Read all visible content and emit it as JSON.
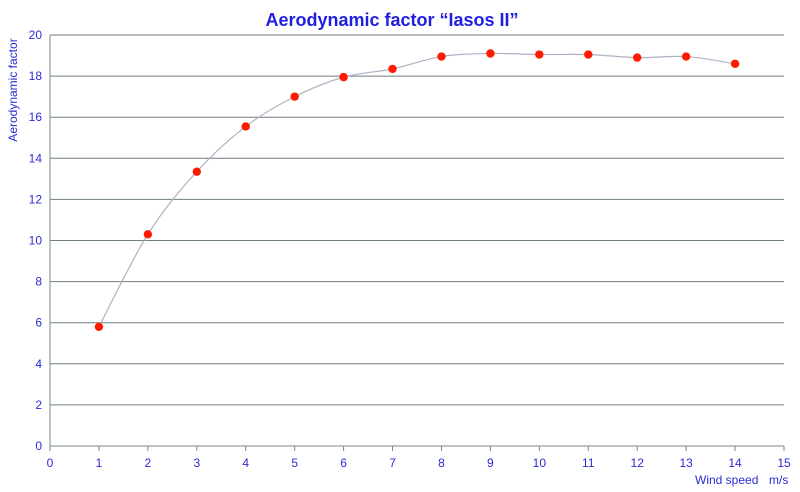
{
  "chart_data": {
    "type": "scatter",
    "title": "Aerodynamic factor “Iasos II”",
    "xlabel": "Wind speed",
    "xunit": "m/s",
    "ylabel": "Aerodynamic factor",
    "xlim": [
      0,
      15
    ],
    "ylim": [
      0,
      20
    ],
    "xticks": [
      0,
      1,
      2,
      3,
      4,
      5,
      6,
      7,
      8,
      9,
      10,
      11,
      12,
      13,
      14,
      15
    ],
    "yticks": [
      0,
      2,
      4,
      6,
      8,
      10,
      12,
      14,
      16,
      18,
      20
    ],
    "grid": "horizontal",
    "series": [
      {
        "x": [
          1,
          2,
          3,
          4,
          5,
          6,
          7,
          8,
          9,
          10,
          11,
          12,
          13,
          14
        ],
        "values": [
          5.8,
          10.3,
          13.35,
          15.55,
          17.0,
          17.95,
          18.35,
          18.95,
          19.1,
          19.05,
          19.05,
          18.9,
          18.95,
          18.6
        ],
        "marker_color": "#ff1a00",
        "line_color": "#b0b0c4",
        "smooth_line": true
      }
    ]
  }
}
